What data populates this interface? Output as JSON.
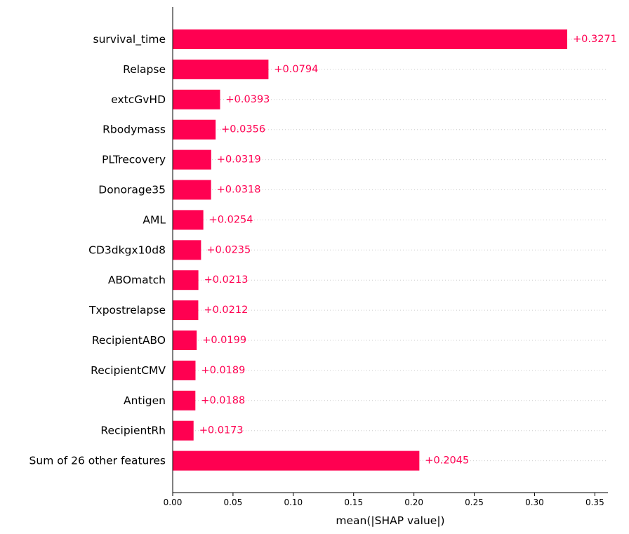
{
  "chart_data": {
    "type": "bar",
    "orientation": "horizontal",
    "title": "",
    "xlabel": "mean(|SHAP value|)",
    "ylabel": "",
    "xlim": [
      0,
      0.36
    ],
    "grid": "dotted guide line per bar",
    "legend": "none",
    "bar_color": "#ff0051",
    "label_color": "#ff0051",
    "categories": [
      "survival_time",
      "Relapse",
      "extcGvHD",
      "Rbodymass",
      "PLTrecovery",
      "Donorage35",
      "AML",
      "CD3dkgx10d8",
      "ABOmatch",
      "Txpostrelapse",
      "RecipientABO",
      "RecipientCMV",
      "Antigen",
      "RecipientRh",
      "Sum of 26 other features"
    ],
    "values": [
      0.3271,
      0.0794,
      0.0393,
      0.0356,
      0.0319,
      0.0318,
      0.0254,
      0.0235,
      0.0213,
      0.0212,
      0.0199,
      0.0189,
      0.0188,
      0.0173,
      0.2045
    ],
    "value_labels": [
      "+0.3271",
      "+0.0794",
      "+0.0393",
      "+0.0356",
      "+0.0319",
      "+0.0318",
      "+0.0254",
      "+0.0235",
      "+0.0213",
      "+0.0212",
      "+0.0199",
      "+0.0189",
      "+0.0188",
      "+0.0173",
      "+0.2045"
    ],
    "x_ticks": [
      0.0,
      0.05,
      0.1,
      0.15,
      0.2,
      0.25,
      0.3,
      0.35
    ],
    "x_tick_labels": [
      "0.00",
      "0.05",
      "0.10",
      "0.15",
      "0.20",
      "0.25",
      "0.30",
      "0.35"
    ]
  }
}
